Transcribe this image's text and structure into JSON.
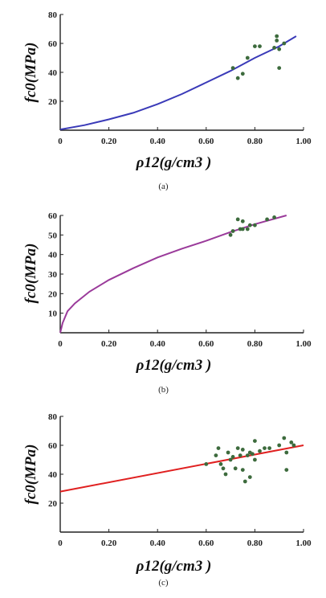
{
  "chart_data": [
    {
      "type": "scatter",
      "caption": "(a)",
      "xlabel": "ρ12(g/cm3 )",
      "ylabel": "fc0(MPa)",
      "xlim": [
        0,
        1.0
      ],
      "ylim": [
        0,
        80
      ],
      "x_ticks": [
        "0",
        "0.20",
        "0.40",
        "0.60",
        "0.80",
        "1.00"
      ],
      "y_ticks": [
        "20",
        "40",
        "60",
        "80"
      ],
      "fit_color": "#3a3ab8",
      "point_color": "#3d6b3d",
      "fit_line": [
        [
          0,
          0.5
        ],
        [
          0.1,
          3.5
        ],
        [
          0.2,
          7.5
        ],
        [
          0.3,
          12
        ],
        [
          0.4,
          18
        ],
        [
          0.5,
          25
        ],
        [
          0.6,
          33
        ],
        [
          0.7,
          41
        ],
        [
          0.8,
          50
        ],
        [
          0.9,
          58
        ],
        [
          0.97,
          65
        ]
      ],
      "points": [
        [
          0.71,
          43
        ],
        [
          0.73,
          36
        ],
        [
          0.75,
          39
        ],
        [
          0.77,
          50
        ],
        [
          0.8,
          58
        ],
        [
          0.82,
          58
        ],
        [
          0.88,
          57
        ],
        [
          0.89,
          65
        ],
        [
          0.89,
          62
        ],
        [
          0.9,
          56
        ],
        [
          0.9,
          43
        ],
        [
          0.92,
          60
        ]
      ]
    },
    {
      "type": "scatter",
      "caption": "(b)",
      "xlabel": "ρ12(g/cm3 )",
      "ylabel": "fc0(MPa)",
      "xlim": [
        0,
        1.0
      ],
      "ylim": [
        0,
        60
      ],
      "x_ticks": [
        "0",
        "0.20",
        "0.40",
        "0.60",
        "0.80",
        "1.00"
      ],
      "y_ticks": [
        "10",
        "20",
        "30",
        "40",
        "50",
        "60"
      ],
      "fit_color": "#9a3a9a",
      "point_color": "#3d6b3d",
      "fit_line": [
        [
          0,
          0
        ],
        [
          0.01,
          5
        ],
        [
          0.03,
          11
        ],
        [
          0.06,
          15
        ],
        [
          0.12,
          21
        ],
        [
          0.2,
          27
        ],
        [
          0.3,
          33
        ],
        [
          0.4,
          38.5
        ],
        [
          0.5,
          43
        ],
        [
          0.6,
          47
        ],
        [
          0.7,
          51.5
        ],
        [
          0.8,
          55.5
        ],
        [
          0.93,
          60
        ]
      ],
      "points": [
        [
          0.7,
          50
        ],
        [
          0.71,
          52
        ],
        [
          0.73,
          58
        ],
        [
          0.74,
          53
        ],
        [
          0.75,
          57
        ],
        [
          0.75,
          53
        ],
        [
          0.77,
          53
        ],
        [
          0.78,
          55
        ],
        [
          0.8,
          55
        ],
        [
          0.85,
          58
        ],
        [
          0.88,
          59
        ]
      ]
    },
    {
      "type": "scatter",
      "caption": "(c)",
      "xlabel": "ρ12(g/cm3 )",
      "ylabel": "fc0(MPa)",
      "xlim": [
        0,
        1.0
      ],
      "ylim": [
        0,
        80
      ],
      "x_ticks": [
        "0",
        "0.20",
        "0.40",
        "0.60",
        "0.80",
        "1.00"
      ],
      "y_ticks": [
        "20",
        "40",
        "60",
        "80"
      ],
      "fit_color": "#e02020",
      "point_color": "#3d6b3d",
      "fit_line": [
        [
          0,
          28
        ],
        [
          1.0,
          60
        ]
      ],
      "points": [
        [
          0.6,
          47
        ],
        [
          0.64,
          53
        ],
        [
          0.65,
          58
        ],
        [
          0.66,
          47
        ],
        [
          0.67,
          44
        ],
        [
          0.68,
          40
        ],
        [
          0.69,
          55
        ],
        [
          0.7,
          50
        ],
        [
          0.71,
          52
        ],
        [
          0.72,
          44
        ],
        [
          0.73,
          58
        ],
        [
          0.74,
          53
        ],
        [
          0.75,
          57
        ],
        [
          0.75,
          43
        ],
        [
          0.76,
          35
        ],
        [
          0.77,
          53
        ],
        [
          0.78,
          55
        ],
        [
          0.78,
          38
        ],
        [
          0.79,
          54
        ],
        [
          0.8,
          63
        ],
        [
          0.8,
          50
        ],
        [
          0.82,
          56
        ],
        [
          0.84,
          58
        ],
        [
          0.86,
          58
        ],
        [
          0.9,
          60
        ],
        [
          0.92,
          65
        ],
        [
          0.93,
          55
        ],
        [
          0.93,
          43
        ],
        [
          0.95,
          62
        ],
        [
          0.96,
          60
        ]
      ]
    }
  ]
}
